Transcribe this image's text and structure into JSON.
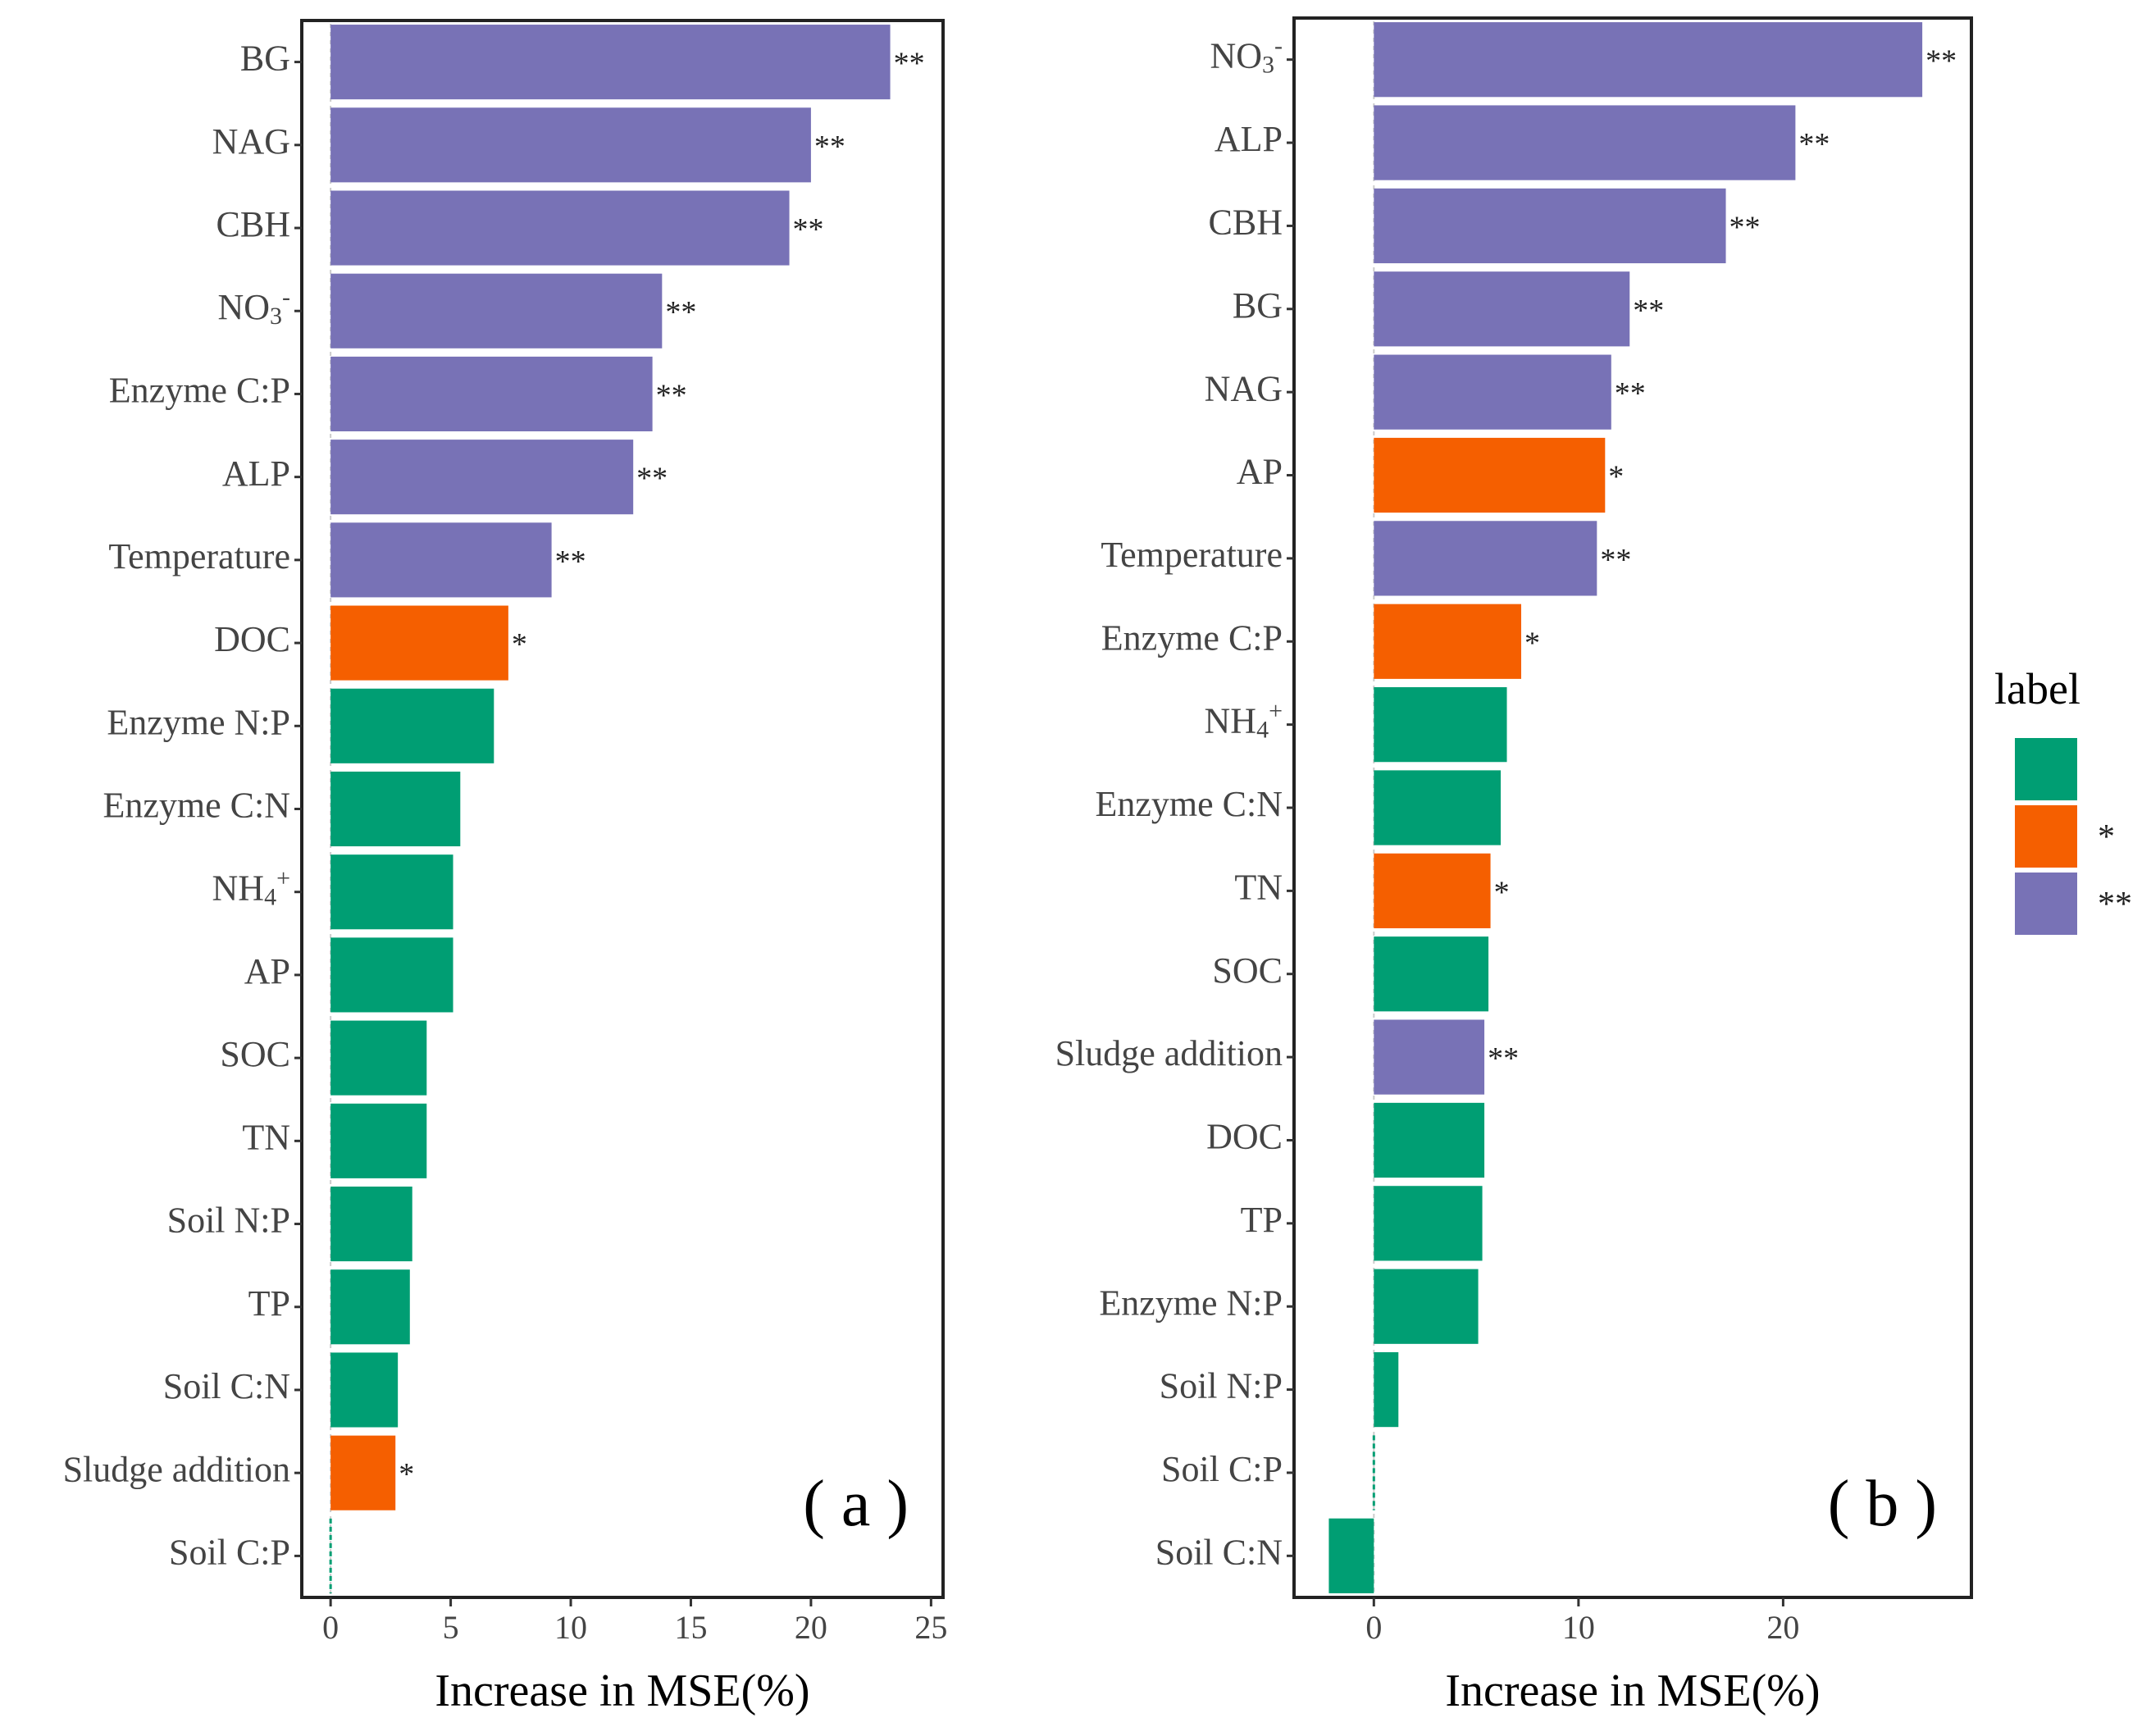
{
  "chart_data": [
    {
      "type": "bar",
      "orientation": "horizontal",
      "panel_label": "( a )",
      "xlabel": "Increase in MSE(%)",
      "xlim": [
        -1.2,
        25.5
      ],
      "xticks": [
        0,
        5,
        10,
        15,
        20,
        25
      ],
      "bars": [
        {
          "category": "BG",
          "value": 23.3,
          "sig": "**"
        },
        {
          "category": "NAG",
          "value": 20.0,
          "sig": "**"
        },
        {
          "category": "CBH",
          "value": 19.1,
          "sig": "**"
        },
        {
          "category": "NO3-",
          "value": 13.8,
          "sig": "**"
        },
        {
          "category": "Enzyme C:P",
          "value": 13.4,
          "sig": "**"
        },
        {
          "category": "ALP",
          "value": 12.6,
          "sig": "**"
        },
        {
          "category": "Temperature",
          "value": 9.2,
          "sig": "**"
        },
        {
          "category": "DOC",
          "value": 7.4,
          "sig": "*"
        },
        {
          "category": "Enzyme N:P",
          "value": 6.8,
          "sig": ""
        },
        {
          "category": "Enzyme C:N",
          "value": 5.4,
          "sig": ""
        },
        {
          "category": "NH4+",
          "value": 5.1,
          "sig": ""
        },
        {
          "category": "AP",
          "value": 5.1,
          "sig": ""
        },
        {
          "category": "SOC",
          "value": 4.0,
          "sig": ""
        },
        {
          "category": "TN",
          "value": 4.0,
          "sig": ""
        },
        {
          "category": "Soil N:P",
          "value": 3.4,
          "sig": ""
        },
        {
          "category": "TP",
          "value": 3.3,
          "sig": ""
        },
        {
          "category": "Soil C:N",
          "value": 2.8,
          "sig": ""
        },
        {
          "category": "Sludge addition",
          "value": 2.7,
          "sig": "*"
        },
        {
          "category": "Soil C:P",
          "value": 0.0,
          "sig": ""
        }
      ]
    },
    {
      "type": "bar",
      "orientation": "horizontal",
      "panel_label": "( b )",
      "xlabel": "Increase in MSE(%)",
      "xlim": [
        -3.9,
        29.2
      ],
      "xticks": [
        0,
        10,
        20
      ],
      "bars": [
        {
          "category": "NO3-",
          "value": 26.8,
          "sig": "**"
        },
        {
          "category": "ALP",
          "value": 20.6,
          "sig": "**"
        },
        {
          "category": "CBH",
          "value": 17.2,
          "sig": "**"
        },
        {
          "category": "BG",
          "value": 12.5,
          "sig": "**"
        },
        {
          "category": "NAG",
          "value": 11.6,
          "sig": "**"
        },
        {
          "category": "AP",
          "value": 11.3,
          "sig": "*"
        },
        {
          "category": "Temperature",
          "value": 10.9,
          "sig": "**"
        },
        {
          "category": "Enzyme C:P",
          "value": 7.2,
          "sig": "*"
        },
        {
          "category": "NH4+",
          "value": 6.5,
          "sig": ""
        },
        {
          "category": "Enzyme C:N",
          "value": 6.2,
          "sig": ""
        },
        {
          "category": "TN",
          "value": 5.7,
          "sig": "*"
        },
        {
          "category": "SOC",
          "value": 5.6,
          "sig": ""
        },
        {
          "category": "Sludge addition",
          "value": 5.4,
          "sig": "**"
        },
        {
          "category": "DOC",
          "value": 5.4,
          "sig": ""
        },
        {
          "category": "TP",
          "value": 5.3,
          "sig": ""
        },
        {
          "category": "Enzyme N:P",
          "value": 5.1,
          "sig": ""
        },
        {
          "category": "Soil N:P",
          "value": 1.2,
          "sig": ""
        },
        {
          "category": "Soil C:P",
          "value": 0.0,
          "sig": ""
        },
        {
          "category": "Soil C:N",
          "value": -2.2,
          "sig": ""
        }
      ]
    }
  ],
  "legend": {
    "title": "label",
    "items": [
      {
        "label": "",
        "color": "#009e73"
      },
      {
        "label": "*",
        "color": "#f55f00"
      },
      {
        "label": "**",
        "color": "#7872b6"
      }
    ]
  },
  "colors": {
    "": "#009e73",
    "*": "#f55f00",
    "**": "#7872b6"
  }
}
